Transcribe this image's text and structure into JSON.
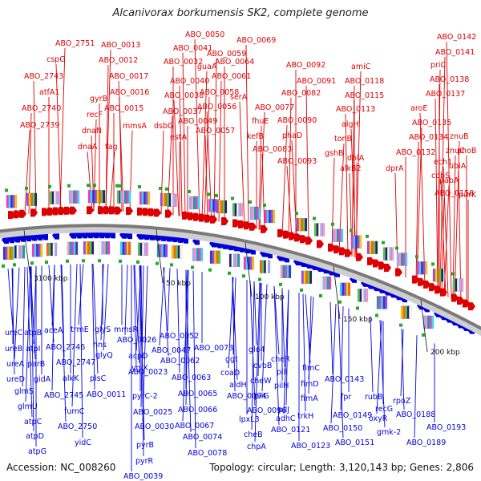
{
  "header": {
    "title": "Alcanivorax borkumensis SK2, complete genome"
  },
  "footer": {
    "accession": "Accession: NC_008260",
    "topology": "Topology: circular; Length: 3,120,143 bp; Genes: 2,806"
  },
  "colors": {
    "forward": "#dd0000",
    "reverse": "#0000dd",
    "backbone": "#888888"
  },
  "scale_labels": [
    "3100 kbp",
    "50 kbp",
    "100 kbp",
    "150 kbp",
    "200 kbp"
  ],
  "forward_genes": [
    "ABO_2739",
    "ABO_2740",
    "atfA1",
    "ABO_2743",
    "cspG",
    "ABO_2751",
    "recF",
    "gyrB",
    "dnaN",
    "dnaA",
    "ABO_0013",
    "ABO_0012",
    "ABO_0015",
    "ABO_0016",
    "ABO_0017",
    "tag",
    "mmsA",
    "ABO_0032",
    "ABO_0040",
    "ABO_0038",
    "ABO_0037",
    "dsbG",
    "estA",
    "ABO_0041",
    "ABO_0050",
    "guaA",
    "ABO_0059",
    "ABO_0049",
    "ABO_0057",
    "ABO_0056",
    "ABO_0058",
    "ABO_0061",
    "ABO_0064",
    "ABO_0069",
    "serA",
    "ABO_0077",
    "fhuE",
    "kefB",
    "ABO_0083",
    "phaD",
    "ABO_0090",
    "ABO_0082",
    "ABO_0092",
    "ABO_0091",
    "ABO_0093",
    "amiC",
    "ABO_0118",
    "ABO_0115",
    "ABO_0113",
    "algH",
    "tonB",
    "gshB",
    "dhlA",
    "alkB2",
    "ABO_0142",
    "ABO_0141",
    "priC",
    "ABO_0138",
    "ABO_0137",
    "aroE",
    "ABO_0135",
    "ABO_0134",
    "ABO_0132",
    "dprA",
    "ech1",
    "znuB",
    "znuC",
    "phoB",
    "ubiA",
    "cobS",
    "pabA",
    "ABO_0158",
    "purK"
  ],
  "reverse_genes": [
    "ureC",
    "atpB",
    "ureB",
    "atpI",
    "ureA",
    "parB",
    "ureD",
    "gidA",
    "glmS",
    "glmU",
    "atpC",
    "atpD",
    "atpG",
    "aceA",
    "trmE",
    "ABO_2746",
    "ABO_2747",
    "alkK",
    "ABO_2745",
    "fumC",
    "ABO_2750",
    "yidC",
    "glyS",
    "hns",
    "glyQ",
    "plsC",
    "ABO_0011",
    "mmsR",
    "ABO_0026",
    "acpD",
    "ygiX",
    "ABO_0023",
    "pyrC-2",
    "ABO_0025",
    "ABO_0030",
    "pyrB",
    "pyrR",
    "ABO_0039",
    "ABO_0052",
    "ABO_0047",
    "ABO_0062",
    "ABO_0063",
    "ABO_0065",
    "ABO_0066",
    "ABO_0067",
    "ABO_0074",
    "ABO_0078",
    "ABO_0073",
    "ggt",
    "coaD",
    "aldH",
    "ABO_0094",
    "lpxL3",
    "cheB",
    "chpA",
    "ABO_0096",
    "glo4",
    "cvbB",
    "cheW",
    "pilG",
    "cheR",
    "pilI",
    "pilH",
    "pilJ",
    "adhC",
    "ABO_0121",
    "trkH",
    "ABO_0123",
    "fimA",
    "fimD",
    "fimC",
    "ABO_0143",
    "fpr",
    "ABO_0149",
    "ABO_0150",
    "ABO_0151",
    "rubB",
    "recG",
    "rpoZ",
    "oxyR",
    "gmk-2",
    "ABO_0188",
    "ABO_0193",
    "ABO_0189"
  ]
}
